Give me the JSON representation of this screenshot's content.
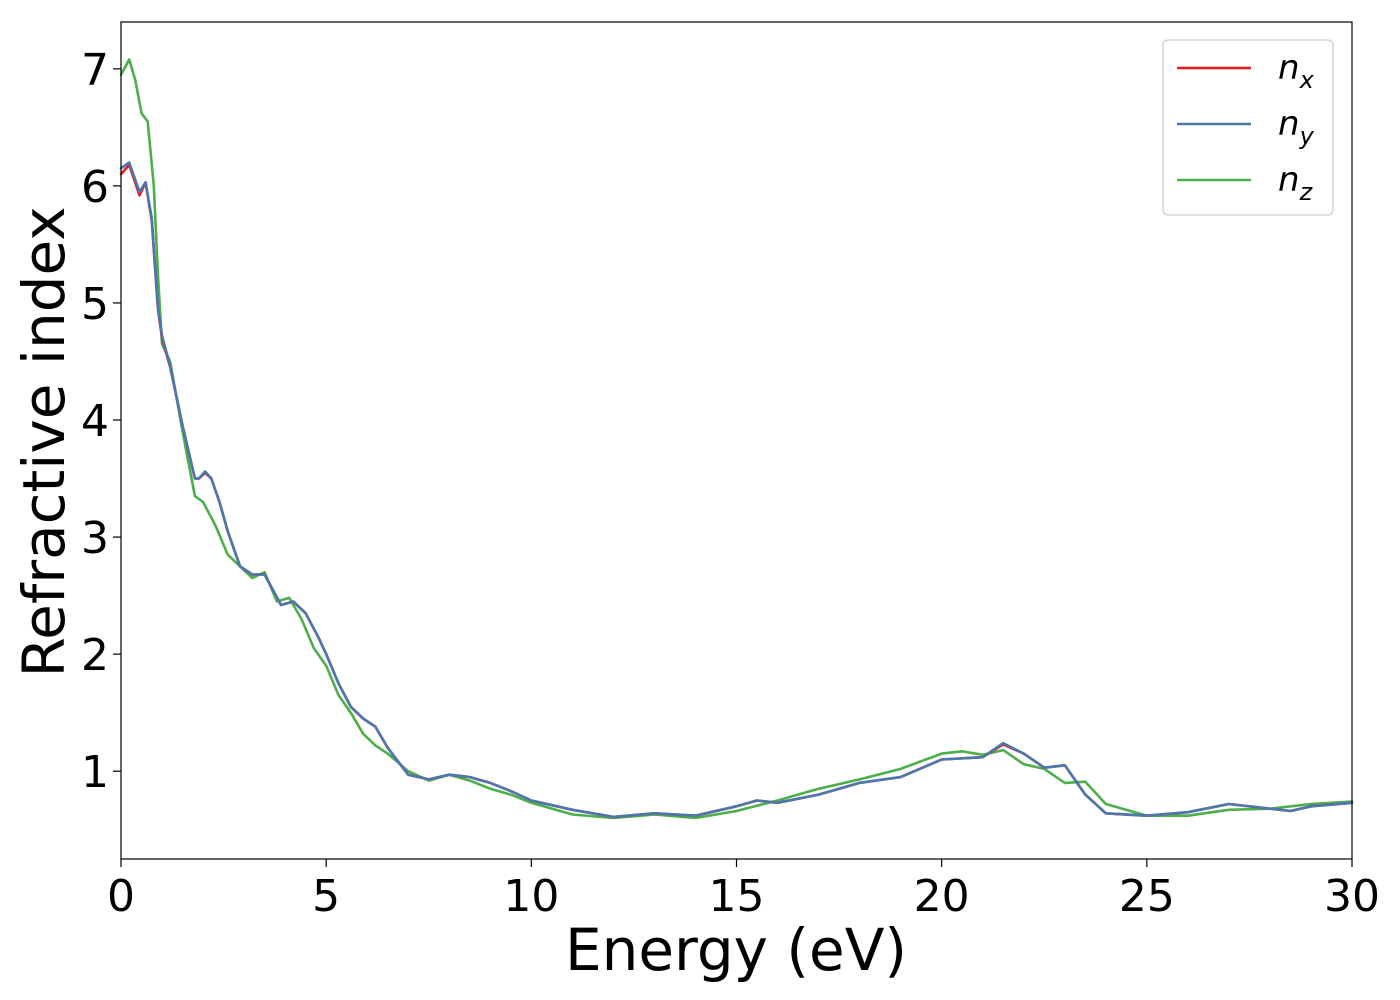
{
  "chart_data": {
    "type": "line",
    "xlabel": "Energy (eV)",
    "ylabel": "Refractive index",
    "xlim": [
      0,
      30
    ],
    "ylim": [
      0.25,
      7.4
    ],
    "xticks": [
      0,
      5,
      10,
      15,
      20,
      25,
      30
    ],
    "yticks": [
      1,
      2,
      3,
      4,
      5,
      6,
      7
    ],
    "grid": false,
    "legend_position": "top-right",
    "series": [
      {
        "name": "n_x",
        "label_base": "n",
        "label_sub": "x",
        "color": "#e41a1c",
        "x": [
          0,
          0.2,
          0.45,
          0.6,
          0.75,
          0.9,
          1.0,
          1.2,
          1.5,
          1.8,
          1.9,
          2.05,
          2.2,
          2.4,
          2.6,
          2.9,
          3.2,
          3.5,
          3.7,
          3.9,
          4.2,
          4.5,
          4.8,
          5.0,
          5.3,
          5.6,
          5.9,
          6.2,
          6.5,
          7.0,
          7.5,
          8.0,
          8.5,
          9.0,
          9.5,
          10.0,
          11.0,
          12.0,
          13.0,
          14.0,
          15.0,
          15.5,
          16.0,
          17.0,
          18.0,
          19.0,
          20.0,
          21.0,
          21.5,
          22.0,
          22.5,
          23.0,
          23.5,
          24.0,
          25.0,
          26.0,
          27.0,
          28.0,
          28.5,
          29.0,
          30.0
        ],
        "values": [
          6.1,
          6.18,
          5.92,
          6.03,
          5.7,
          4.95,
          4.7,
          4.45,
          3.95,
          3.5,
          3.5,
          3.55,
          3.5,
          3.3,
          3.05,
          2.75,
          2.68,
          2.68,
          2.55,
          2.42,
          2.45,
          2.35,
          2.15,
          2.0,
          1.75,
          1.55,
          1.45,
          1.38,
          1.2,
          0.97,
          0.93,
          0.97,
          0.95,
          0.9,
          0.83,
          0.75,
          0.67,
          0.61,
          0.64,
          0.62,
          0.7,
          0.75,
          0.73,
          0.8,
          0.9,
          0.95,
          1.1,
          1.12,
          1.23,
          1.15,
          1.03,
          1.05,
          0.8,
          0.64,
          0.62,
          0.65,
          0.72,
          0.68,
          0.66,
          0.7,
          0.73
        ]
      },
      {
        "name": "n_y",
        "label_base": "n",
        "label_sub": "y",
        "color": "#4a78ae",
        "x": [
          0,
          0.2,
          0.45,
          0.6,
          0.75,
          0.9,
          1.0,
          1.2,
          1.5,
          1.8,
          1.9,
          2.05,
          2.2,
          2.4,
          2.6,
          2.9,
          3.2,
          3.5,
          3.7,
          3.9,
          4.2,
          4.5,
          4.8,
          5.0,
          5.3,
          5.6,
          5.9,
          6.2,
          6.5,
          7.0,
          7.5,
          8.0,
          8.5,
          9.0,
          9.5,
          10.0,
          11.0,
          12.0,
          13.0,
          14.0,
          15.0,
          15.5,
          16.0,
          17.0,
          18.0,
          19.0,
          20.0,
          21.0,
          21.5,
          22.0,
          22.5,
          23.0,
          23.5,
          24.0,
          25.0,
          26.0,
          27.0,
          28.0,
          28.5,
          29.0,
          30.0
        ],
        "values": [
          6.15,
          6.2,
          5.95,
          6.03,
          5.72,
          4.97,
          4.72,
          4.46,
          3.95,
          3.5,
          3.5,
          3.56,
          3.5,
          3.3,
          3.05,
          2.75,
          2.68,
          2.68,
          2.55,
          2.42,
          2.45,
          2.35,
          2.15,
          2.0,
          1.75,
          1.55,
          1.45,
          1.38,
          1.2,
          0.97,
          0.93,
          0.97,
          0.95,
          0.9,
          0.83,
          0.75,
          0.67,
          0.61,
          0.64,
          0.62,
          0.7,
          0.75,
          0.73,
          0.8,
          0.9,
          0.95,
          1.1,
          1.12,
          1.24,
          1.15,
          1.03,
          1.05,
          0.8,
          0.64,
          0.62,
          0.65,
          0.72,
          0.68,
          0.66,
          0.7,
          0.73
        ]
      },
      {
        "name": "n_z",
        "label_base": "n",
        "label_sub": "z",
        "color": "#4daf4a",
        "x": [
          0,
          0.2,
          0.35,
          0.5,
          0.65,
          0.8,
          0.9,
          1.0,
          1.2,
          1.5,
          1.8,
          2.0,
          2.3,
          2.6,
          2.9,
          3.2,
          3.5,
          3.8,
          4.1,
          4.4,
          4.7,
          5.0,
          5.3,
          5.6,
          5.9,
          6.2,
          6.5,
          7.0,
          7.5,
          8.0,
          8.5,
          9.0,
          9.5,
          10.0,
          11.0,
          12.0,
          13.0,
          14.0,
          15.0,
          16.0,
          17.0,
          18.0,
          19.0,
          20.0,
          20.5,
          21.0,
          21.5,
          22.0,
          22.5,
          23.0,
          23.5,
          24.0,
          25.0,
          26.0,
          27.0,
          28.0,
          29.0,
          30.0
        ],
        "values": [
          6.95,
          7.08,
          6.9,
          6.62,
          6.55,
          6.0,
          5.25,
          4.65,
          4.5,
          3.9,
          3.35,
          3.3,
          3.1,
          2.85,
          2.75,
          2.65,
          2.7,
          2.45,
          2.48,
          2.3,
          2.05,
          1.9,
          1.65,
          1.5,
          1.32,
          1.22,
          1.15,
          1.0,
          0.92,
          0.97,
          0.92,
          0.85,
          0.8,
          0.73,
          0.63,
          0.6,
          0.63,
          0.6,
          0.66,
          0.75,
          0.85,
          0.93,
          1.02,
          1.15,
          1.17,
          1.14,
          1.18,
          1.06,
          1.02,
          0.9,
          0.91,
          0.72,
          0.62,
          0.62,
          0.67,
          0.68,
          0.72,
          0.74
        ]
      }
    ]
  }
}
